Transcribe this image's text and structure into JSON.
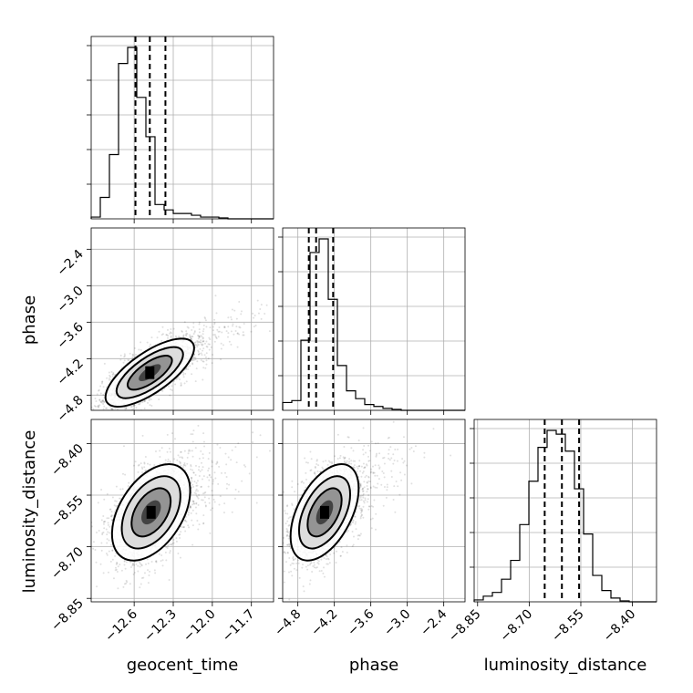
{
  "chart_data": {
    "type": "corner",
    "parameters": [
      "geocent_time",
      "phase",
      "luminosity_distance"
    ],
    "axis_ranges": {
      "geocent_time": [
        -12.93,
        -11.53
      ],
      "phase": [
        -5.05,
        -2.05
      ],
      "luminosity_distance": [
        -8.86,
        -8.33
      ]
    },
    "ticks": {
      "geocent_time": [
        -12.6,
        -12.3,
        -12.0,
        -11.7
      ],
      "phase": [
        -4.8,
        -4.2,
        -3.6,
        -3.0,
        -2.4
      ],
      "luminosity_distance": [
        -8.85,
        -8.7,
        -8.55,
        -8.4
      ]
    },
    "tick_labels": {
      "geocent_time": [
        "−12.6",
        "−12.3",
        "−12.0",
        "−11.7"
      ],
      "phase": [
        "−4.8",
        "−4.2",
        "−3.6",
        "−3.0",
        "−2.4"
      ],
      "luminosity_distance": [
        "−8.85",
        "−8.70",
        "−8.55",
        "−8.40"
      ]
    },
    "axis_labels": {
      "geocent_time": "geocent_time",
      "phase": "phase",
      "luminosity_distance": "luminosity_distance"
    },
    "quantiles": {
      "geocent_time": [
        -12.59,
        -12.48,
        -12.36
      ],
      "phase": [
        -4.62,
        -4.5,
        -4.22
      ],
      "luminosity_distance": [
        -8.655,
        -8.605,
        -8.555
      ]
    },
    "histograms": {
      "geocent_time": {
        "edges_range": [
          -12.93,
          -11.53
        ],
        "bins": 20,
        "counts": [
          0.01,
          0.12,
          0.36,
          0.87,
          0.96,
          0.68,
          0.46,
          0.08,
          0.05,
          0.03,
          0.03,
          0.02,
          0.01,
          0.01,
          0.005,
          0,
          0,
          0,
          0,
          0
        ]
      },
      "phase": {
        "edges_range": [
          -5.05,
          -2.05
        ],
        "bins": 20,
        "counts": [
          0.04,
          0.05,
          0.36,
          0.81,
          0.88,
          0.57,
          0.23,
          0.1,
          0.06,
          0.03,
          0.02,
          0.01,
          0.005,
          0,
          0,
          0,
          0,
          0,
          0,
          0
        ]
      },
      "luminosity_distance": {
        "edges_range": [
          -8.86,
          -8.33
        ],
        "bins": 20,
        "counts": [
          0.01,
          0.03,
          0.05,
          0.12,
          0.22,
          0.41,
          0.64,
          0.82,
          0.91,
          0.89,
          0.8,
          0.6,
          0.36,
          0.14,
          0.06,
          0.02,
          0.005,
          0,
          0,
          0
        ]
      }
    },
    "scatter": {
      "phase_vs_geocent_time": {
        "x": "geocent_time",
        "y": "phase",
        "mean": [
          -12.48,
          -4.43
        ],
        "sd": [
          0.17,
          0.28
        ],
        "rho": 0.72,
        "count": 2500
      },
      "luminosity_distance_vs_geocent_time": {
        "x": "geocent_time",
        "y": "luminosity_distance",
        "mean": [
          -12.47,
          -8.6
        ],
        "sd": [
          0.15,
          0.07
        ],
        "rho": 0.45,
        "count": 2500
      },
      "luminosity_distance_vs_phase": {
        "x": "phase",
        "y": "luminosity_distance",
        "mean": [
          -4.36,
          -8.6
        ],
        "sd": [
          0.28,
          0.07
        ],
        "rho": 0.5,
        "count": 2500
      }
    },
    "contour_levels_sigma": [
      0.5,
      1.0,
      1.5,
      2.0
    ],
    "grid": true,
    "legend": "none"
  }
}
